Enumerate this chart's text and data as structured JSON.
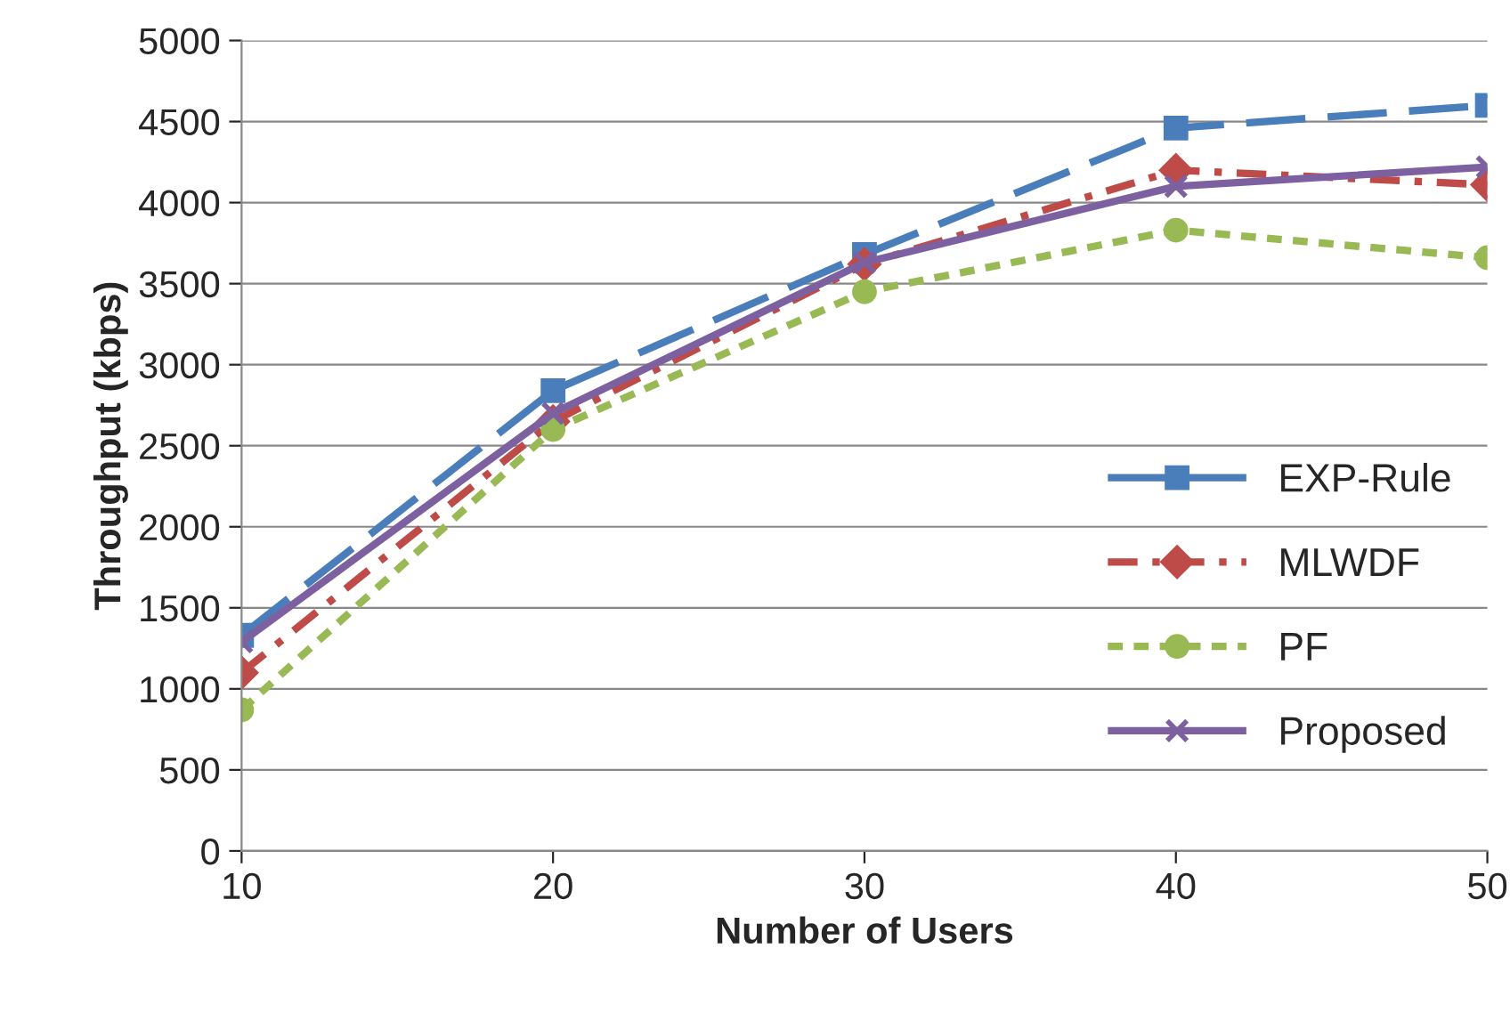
{
  "chart_data": {
    "type": "line",
    "xlabel": "Number of Users",
    "ylabel": "Throughput (kbps)",
    "x": [
      10,
      20,
      30,
      40,
      50
    ],
    "xlim": [
      10,
      50
    ],
    "xticks": [
      10,
      20,
      30,
      40,
      50
    ],
    "ylim": [
      0,
      5000
    ],
    "yticks": [
      0,
      500,
      1000,
      1500,
      2000,
      2500,
      3000,
      3500,
      4000,
      4500,
      5000
    ],
    "grid": "y",
    "legend": "right",
    "series": [
      {
        "name": "EXP-Rule",
        "color": "#4a7ebb",
        "marker": "square",
        "line_style": "dashed",
        "values": [
          1330,
          2840,
          3680,
          4460,
          4600
        ]
      },
      {
        "name": "MLWDF",
        "color": "#be4b48",
        "marker": "diamond",
        "line_style": "dashdot",
        "values": [
          1100,
          2650,
          3620,
          4200,
          4110
        ]
      },
      {
        "name": "PF",
        "color": "#98b954",
        "marker": "circle",
        "line_style": "dotted",
        "values": [
          870,
          2600,
          3450,
          3830,
          3660
        ]
      },
      {
        "name": "Proposed",
        "color": "#7d60a0",
        "marker": "cross",
        "line_style": "solid",
        "values": [
          1290,
          2700,
          3630,
          4100,
          4220
        ]
      }
    ]
  }
}
